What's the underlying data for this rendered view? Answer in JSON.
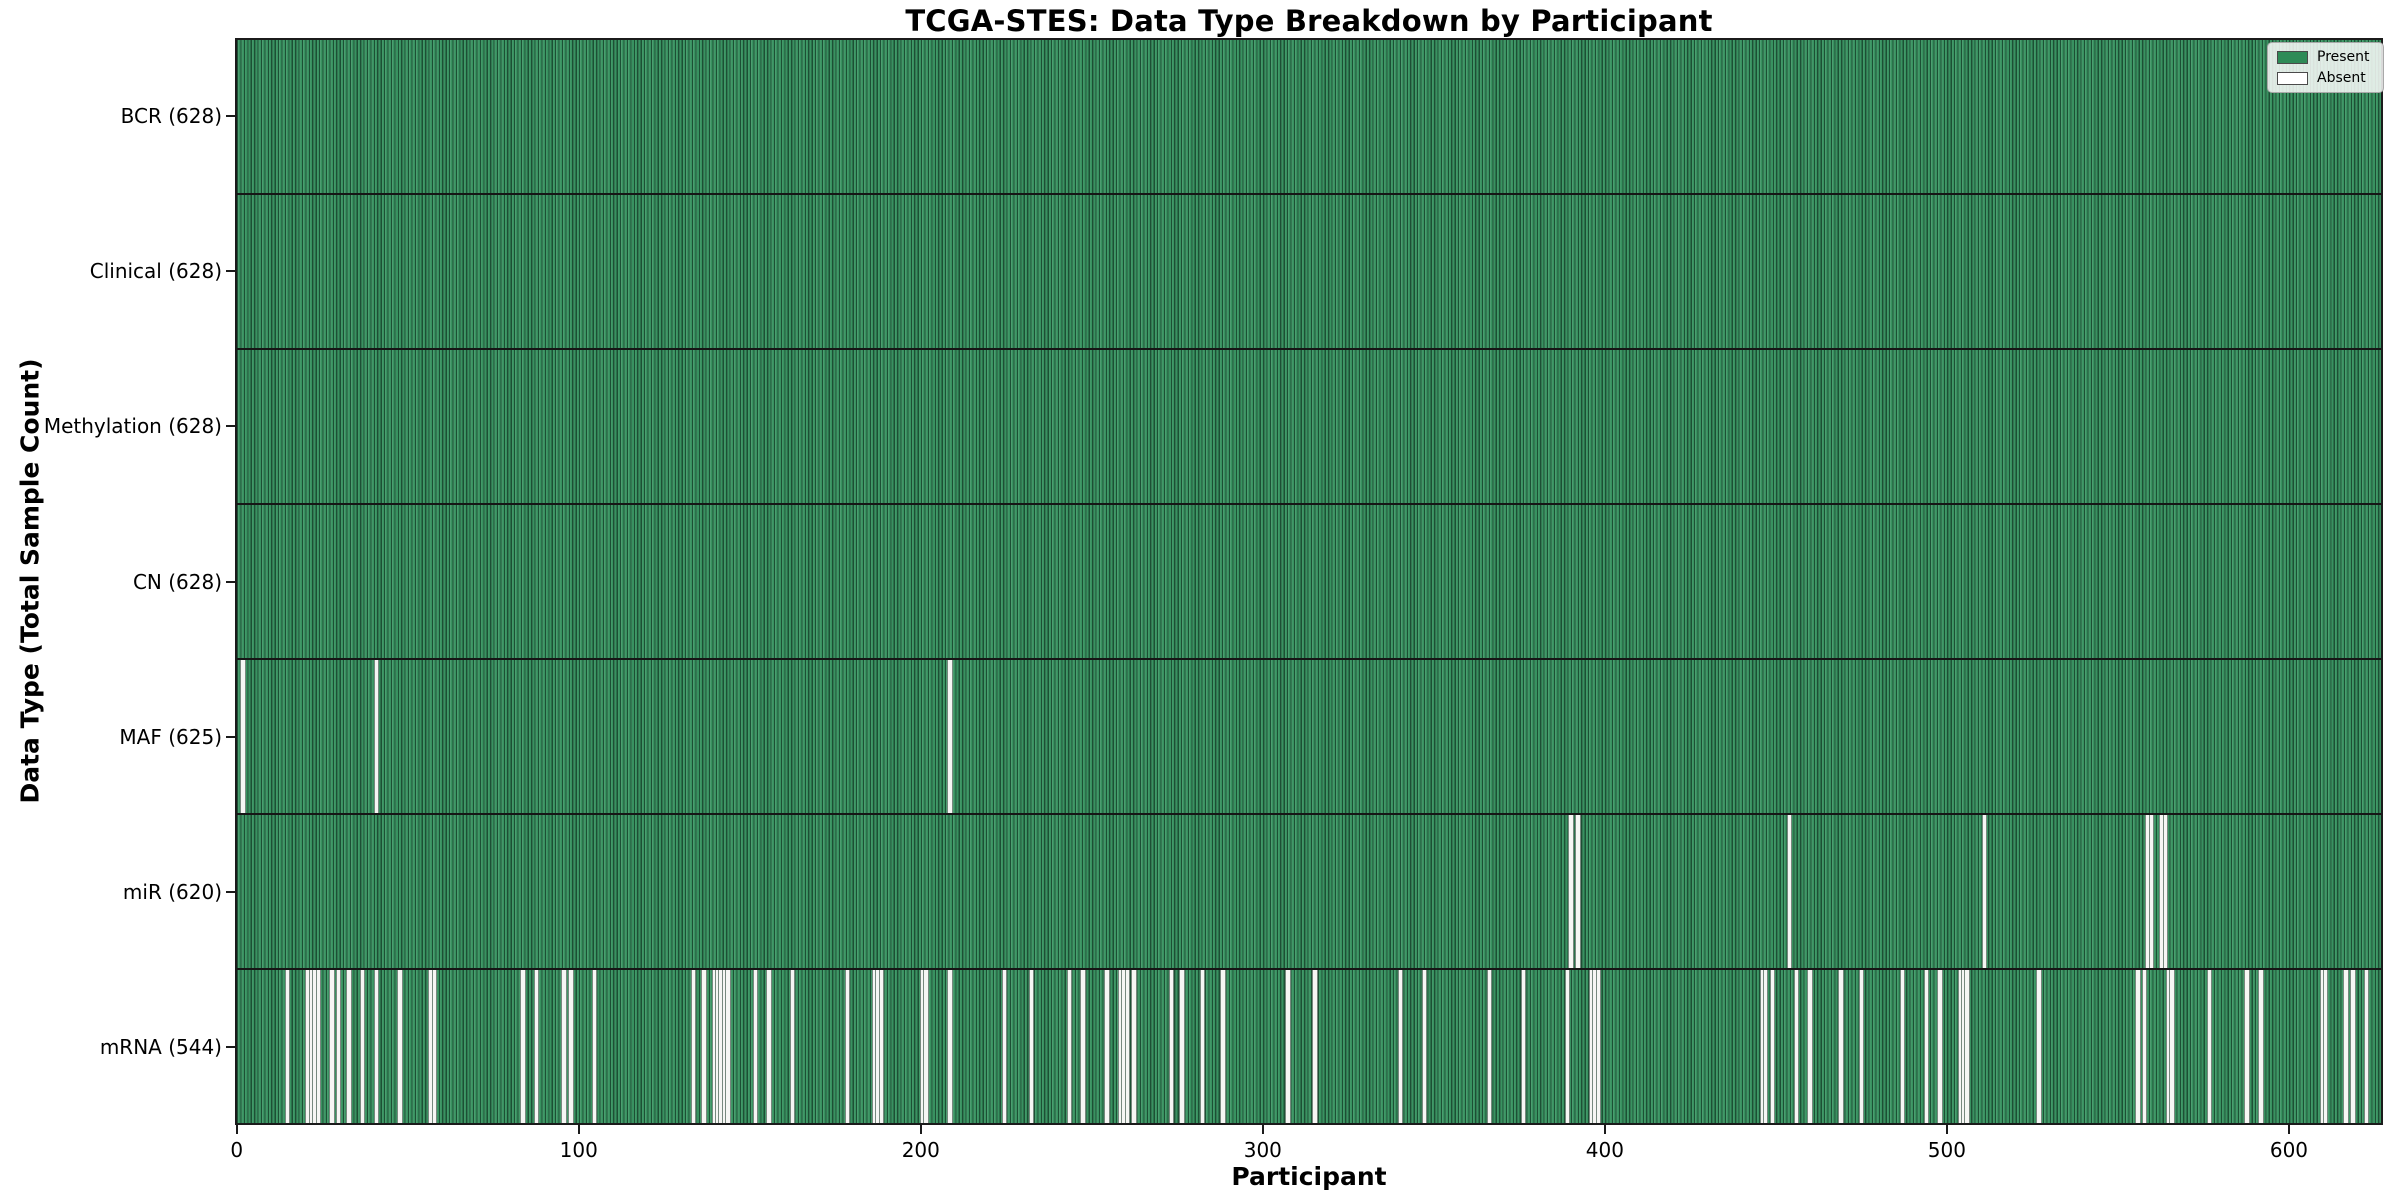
{
  "chart_data": {
    "type": "heatmap",
    "title": "TCGA-STES: Data Type Breakdown by Participant",
    "xlabel": "Participant",
    "ylabel": "Data Type (Total Sample Count)",
    "n_participants": 628,
    "x_ticks": [
      0,
      100,
      200,
      300,
      400,
      500,
      600
    ],
    "grid": false,
    "legend_position": "upper right",
    "present_color": "#2E8B57",
    "absent_color": "#FFFFFF",
    "legend_items": [
      {
        "label": "Present",
        "color": "#2E8B57"
      },
      {
        "label": "Absent",
        "color": "#FFFFFF"
      }
    ],
    "rows": [
      {
        "data_type": "BCR",
        "label": "BCR (628)",
        "present_count": 628,
        "absent_participants": []
      },
      {
        "data_type": "Clinical",
        "label": "Clinical (628)",
        "present_count": 628,
        "absent_participants": []
      },
      {
        "data_type": "Methylation",
        "label": "Methylation (628)",
        "present_count": 628,
        "absent_participants": []
      },
      {
        "data_type": "CN",
        "label": "CN (628)",
        "present_count": 628,
        "absent_participants": []
      },
      {
        "data_type": "MAF",
        "label": "MAF (625)",
        "present_count": 625,
        "absent_participants": [
          1,
          40,
          208
        ]
      },
      {
        "data_type": "miR",
        "label": "miR (620)",
        "present_count": 620,
        "absent_participants": [
          390,
          392,
          454,
          511,
          559,
          560,
          563,
          564
        ]
      },
      {
        "data_type": "mRNA",
        "label": "mRNA (544)",
        "present_count": 544,
        "absent_participants": [
          14,
          20,
          21,
          22,
          23,
          27,
          29,
          32,
          36,
          40,
          47,
          56,
          57,
          83,
          87,
          95,
          97,
          104,
          133,
          136,
          139,
          140,
          141,
          142,
          143,
          151,
          155,
          162,
          178,
          186,
          187,
          188,
          200,
          201,
          208,
          224,
          232,
          243,
          247,
          254,
          258,
          259,
          260,
          262,
          273,
          276,
          282,
          288,
          307,
          315,
          340,
          347,
          366,
          376,
          389,
          396,
          397,
          398,
          446,
          447,
          449,
          456,
          460,
          469,
          475,
          487,
          494,
          498,
          504,
          505,
          506,
          527,
          556,
          558,
          565,
          566,
          577,
          588,
          592,
          610,
          611,
          617,
          619,
          623
        ]
      }
    ]
  }
}
